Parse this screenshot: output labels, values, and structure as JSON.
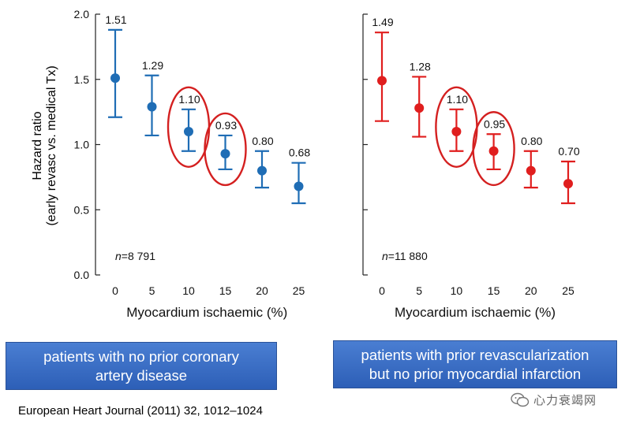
{
  "chart_data": [
    {
      "type": "scatter",
      "style": "point-with-error-bars",
      "panel": "left",
      "x": [
        0,
        5,
        10,
        15,
        20,
        25
      ],
      "y": [
        1.51,
        1.29,
        1.1,
        0.93,
        0.8,
        0.68
      ],
      "y_low": [
        1.21,
        1.07,
        0.95,
        0.81,
        0.67,
        0.55
      ],
      "y_high": [
        1.88,
        1.53,
        1.27,
        1.07,
        0.95,
        0.86
      ],
      "labels": [
        "1.51",
        "1.29",
        "1.10",
        "0.93",
        "0.80",
        "0.68"
      ],
      "xticks": [
        "0",
        "5",
        "10",
        "15",
        "20",
        "25"
      ],
      "yticks": [
        "0.0",
        "0.5",
        "1.0",
        "1.5",
        "2.0"
      ],
      "ylim": [
        0,
        2.0
      ],
      "xlabel": "Myocardium ischaemic (%)",
      "ylabel_line1": "Hazard ratio",
      "ylabel_line2": "(early revasc vs. medical Tx)",
      "n_prefix": "n",
      "n_value": "=8 791",
      "color": "#1f6db5",
      "highlighted_x": [
        10,
        15
      ],
      "highlight_color": "#d42020"
    },
    {
      "type": "scatter",
      "style": "point-with-error-bars",
      "panel": "right",
      "x": [
        0,
        5,
        10,
        15,
        20,
        25
      ],
      "y": [
        1.49,
        1.28,
        1.1,
        0.95,
        0.8,
        0.7
      ],
      "y_low": [
        1.18,
        1.06,
        0.95,
        0.81,
        0.67,
        0.55
      ],
      "y_high": [
        1.86,
        1.52,
        1.27,
        1.08,
        0.95,
        0.87
      ],
      "labels": [
        "1.49",
        "1.28",
        "1.10",
        "0.95",
        "0.80",
        "0.70"
      ],
      "xticks": [
        "0",
        "5",
        "10",
        "15",
        "20",
        "25"
      ],
      "ylim": [
        0,
        2.0
      ],
      "xlabel": "Myocardium ischaemic (%)",
      "n_prefix": "n",
      "n_value": "=11 880",
      "color": "#e01e1e",
      "highlighted_x": [
        10,
        15
      ],
      "highlight_color": "#d42020"
    }
  ],
  "boxes": {
    "left": "patients with no prior coronary artery disease",
    "right_line1": "patients with prior revascularization",
    "right_line2": "but no prior myocardial infarction"
  },
  "citation": "European Heart Journal (2011) 32, 1012–1024",
  "watermark": "心力衰竭网"
}
